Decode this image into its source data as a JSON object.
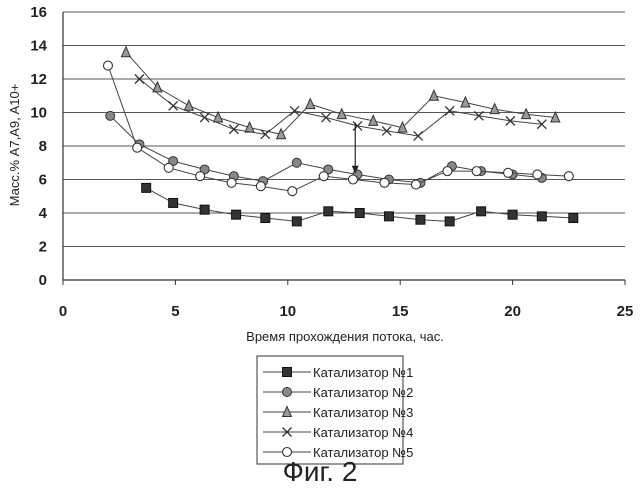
{
  "chart_data": {
    "type": "line",
    "xlabel": "Время прохождения потока, час.",
    "ylabel": "Масс.% A7,A9, A10+",
    "xlim": [
      0,
      25
    ],
    "ylim": [
      0,
      16
    ],
    "xticks": [
      0,
      5,
      10,
      15,
      20,
      25
    ],
    "yticks": [
      0,
      2,
      4,
      6,
      8,
      10,
      12,
      14,
      16
    ],
    "grid": "horizontal",
    "legend_position": "bottom-center",
    "annotation_arrow": {
      "x": 13.0,
      "y_from": 9.4,
      "y_to": 6.4
    },
    "series": [
      {
        "name": "Катализатор №1",
        "marker": "square-filled",
        "x": [
          3.7,
          4.9,
          6.3,
          7.7,
          9.0,
          10.4,
          11.8,
          13.2,
          14.5,
          15.9,
          17.2,
          18.6,
          20.0,
          21.3,
          22.7
        ],
        "y": [
          5.5,
          4.6,
          4.2,
          3.9,
          3.7,
          3.5,
          4.1,
          4.0,
          3.8,
          3.6,
          3.5,
          4.1,
          3.9,
          3.8,
          3.7
        ]
      },
      {
        "name": "Катализатор №2",
        "marker": "circle-gray",
        "x": [
          2.1,
          3.4,
          4.9,
          6.3,
          7.6,
          8.9,
          10.4,
          11.8,
          13.1,
          14.5,
          15.9,
          17.3,
          18.6,
          20.0,
          21.3
        ],
        "y": [
          9.8,
          8.1,
          7.1,
          6.6,
          6.2,
          5.9,
          7.0,
          6.6,
          6.3,
          6.0,
          5.8,
          6.8,
          6.5,
          6.3,
          6.1
        ]
      },
      {
        "name": "Катализатор №3",
        "marker": "triangle-gray",
        "x": [
          2.8,
          4.2,
          5.6,
          6.9,
          8.3,
          9.7,
          11.0,
          12.4,
          13.8,
          15.1,
          16.5,
          17.9,
          19.2,
          20.6,
          21.9
        ],
        "y": [
          13.6,
          11.5,
          10.4,
          9.7,
          9.1,
          8.7,
          10.5,
          9.9,
          9.5,
          9.1,
          11.0,
          10.6,
          10.2,
          9.9,
          9.7
        ]
      },
      {
        "name": "Катализатор №4",
        "marker": "x",
        "x": [
          3.4,
          4.9,
          6.3,
          7.6,
          9.0,
          10.3,
          11.7,
          13.1,
          14.4,
          15.8,
          17.2,
          18.5,
          19.9,
          21.3
        ],
        "y": [
          12.0,
          10.4,
          9.7,
          9.0,
          8.7,
          10.1,
          9.7,
          9.2,
          8.9,
          8.6,
          10.1,
          9.8,
          9.5,
          9.3
        ]
      },
      {
        "name": "Катализатор №5",
        "marker": "circle-open",
        "x": [
          2.0,
          3.3,
          4.7,
          6.1,
          7.5,
          8.8,
          10.2,
          11.6,
          12.9,
          14.3,
          15.7,
          17.1,
          18.4,
          19.8,
          21.1,
          22.5
        ],
        "y": [
          12.8,
          7.9,
          6.7,
          6.2,
          5.8,
          5.6,
          5.3,
          6.2,
          6.0,
          5.8,
          5.7,
          6.5,
          6.5,
          6.4,
          6.3,
          6.2
        ]
      }
    ]
  },
  "figure": {
    "caption": "Фиг. 2"
  }
}
